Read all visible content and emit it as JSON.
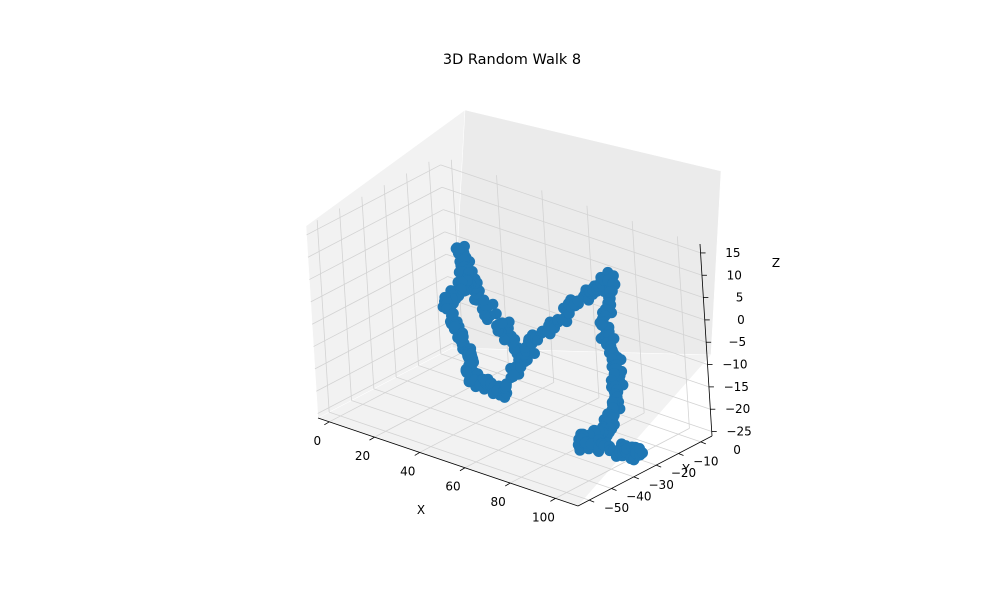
{
  "chart_data": {
    "type": "scatter",
    "projection": "3d",
    "title": "3D Random Walk 8",
    "xlabel": "X",
    "ylabel": "Y",
    "zlabel": "Z",
    "xlim": [
      -5,
      110
    ],
    "ylim": [
      -55,
      5
    ],
    "zlim": [
      -26,
      17
    ],
    "xticks": [
      0,
      20,
      40,
      60,
      80,
      100
    ],
    "yticks": [
      0,
      -10,
      -20,
      -30,
      -40,
      -50
    ],
    "zticks": [
      15,
      10,
      5,
      0,
      -5,
      -10,
      -15,
      -20,
      -25
    ],
    "grid": true,
    "marker_color": "#1f77b4",
    "anchors": [
      {
        "x": 60,
        "y": -26,
        "z": -8
      },
      {
        "x": 45,
        "y": -30,
        "z": 3
      },
      {
        "x": 40,
        "y": -32,
        "z": 14
      },
      {
        "x": 38,
        "y": -28,
        "z": 5
      },
      {
        "x": 28,
        "y": -28,
        "z": -2
      },
      {
        "x": 35,
        "y": -26,
        "z": -12
      },
      {
        "x": 44,
        "y": -35,
        "z": -14
      },
      {
        "x": 55,
        "y": -32,
        "z": -16
      },
      {
        "x": 62,
        "y": -22,
        "z": -5
      },
      {
        "x": 72,
        "y": -10,
        "z": 3
      },
      {
        "x": 78,
        "y": -4,
        "z": 6
      },
      {
        "x": 76,
        "y": -6,
        "z": -6
      },
      {
        "x": 80,
        "y": -6,
        "z": -12
      },
      {
        "x": 86,
        "y": -12,
        "z": -17
      },
      {
        "x": 85,
        "y": -16,
        "z": -24
      },
      {
        "x": 77,
        "y": -22,
        "z": -26
      },
      {
        "x": 92,
        "y": -20,
        "z": -26
      },
      {
        "x": 100,
        "y": -16,
        "z": -26
      }
    ]
  }
}
